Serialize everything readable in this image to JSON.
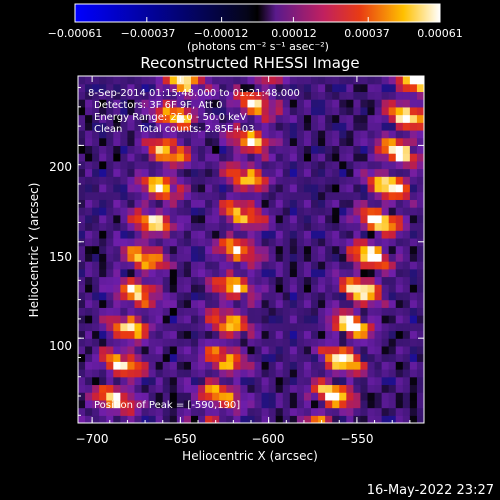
{
  "chart_data": {
    "type": "heatmap",
    "title": "Reconstructed RHESSI Image",
    "xlabel": "Heliocentric X (arcsec)",
    "ylabel": "Heliocentric Y (arcsec)",
    "xlim": [
      -708,
      -512
    ],
    "ylim": [
      56,
      236
    ],
    "x_ticks": [
      -700,
      -650,
      -600,
      -550
    ],
    "y_ticks": [
      100,
      150,
      200
    ],
    "x_tick_labels": [
      "−700",
      "−650",
      "−600",
      "−550"
    ],
    "y_tick_labels": [
      "100",
      "150",
      "200"
    ],
    "colorbar": {
      "min": -0.00061,
      "max": 0.00061,
      "ticks": [
        -0.00061,
        -0.00037,
        -0.00012,
        0.00012,
        0.00037,
        0.00061
      ],
      "tick_labels": [
        "−0.00061",
        "−0.00037",
        "−0.00012",
        "0.00012",
        "0.00037",
        "0.00061"
      ],
      "units_label": "(photons cm⁻² s⁻¹ asec⁻²)"
    },
    "annotations": [
      "8-Sep-2014 01:15:48.000 to 01:21:48.000",
      "Detectors: 3F 6F 9F, Att 0",
      "Energy Range: 25.0 - 50.0 keV",
      "Clean     Total counts: 2.85E+03"
    ],
    "peak_label": "Position of Peak = [-590,190]",
    "peak": [
      -590,
      190
    ],
    "grid": false,
    "colors": {
      "negative": "#0000ff",
      "zero": "#000000",
      "low": "#6a1fa8",
      "mid": "#e32b1e",
      "high": "#ffd700",
      "max": "#ffffff"
    },
    "ridges": [
      {
        "x_at_top": -648,
        "x_at_bottom": -690,
        "peak": 0.00052
      },
      {
        "x_at_top": -605,
        "x_at_bottom": -630,
        "peak": 0.00048
      },
      {
        "x_at_top": -515,
        "x_at_bottom": -568,
        "peak": 0.00058
      }
    ]
  },
  "footer": {
    "timestamp": "16-May-2022 23:27"
  }
}
